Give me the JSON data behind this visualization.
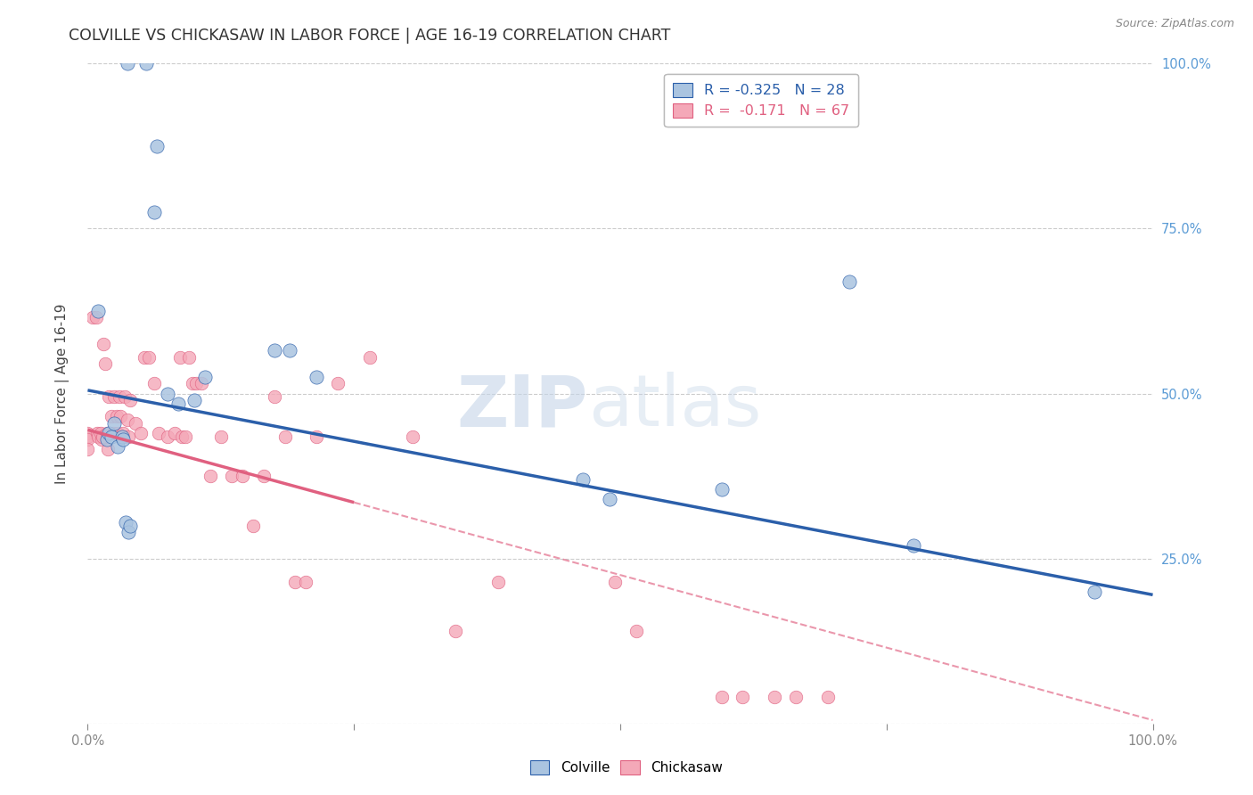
{
  "title": "COLVILLE VS CHICKASAW IN LABOR FORCE | AGE 16-19 CORRELATION CHART",
  "source": "Source: ZipAtlas.com",
  "ylabel": "In Labor Force | Age 16-19",
  "xlim": [
    0.0,
    1.0
  ],
  "ylim": [
    0.0,
    1.0
  ],
  "colville_color": "#aac4e0",
  "chickasaw_color": "#f4a8b8",
  "colville_line_color": "#2b5faa",
  "chickasaw_line_color": "#e06080",
  "colville_R": -0.325,
  "colville_N": 28,
  "chickasaw_R": -0.171,
  "chickasaw_N": 67,
  "watermark_zip": "ZIP",
  "watermark_atlas": "atlas",
  "colville_x": [
    0.037,
    0.055,
    0.065,
    0.01,
    0.018,
    0.02,
    0.022,
    0.025,
    0.028,
    0.032,
    0.033,
    0.036,
    0.038,
    0.04,
    0.062,
    0.075,
    0.085,
    0.1,
    0.11,
    0.175,
    0.19,
    0.215,
    0.465,
    0.49,
    0.595,
    0.715,
    0.775,
    0.945
  ],
  "colville_y": [
    1.0,
    1.0,
    0.875,
    0.625,
    0.43,
    0.44,
    0.435,
    0.455,
    0.42,
    0.435,
    0.43,
    0.305,
    0.29,
    0.3,
    0.775,
    0.5,
    0.485,
    0.49,
    0.525,
    0.565,
    0.565,
    0.525,
    0.37,
    0.34,
    0.355,
    0.67,
    0.27,
    0.2
  ],
  "chickasaw_x": [
    0.0,
    0.0,
    0.0,
    0.0,
    0.005,
    0.008,
    0.009,
    0.01,
    0.012,
    0.013,
    0.014,
    0.015,
    0.016,
    0.018,
    0.019,
    0.02,
    0.022,
    0.024,
    0.025,
    0.027,
    0.028,
    0.03,
    0.031,
    0.032,
    0.033,
    0.035,
    0.037,
    0.038,
    0.04,
    0.045,
    0.05,
    0.053,
    0.057,
    0.062,
    0.067,
    0.075,
    0.082,
    0.087,
    0.088,
    0.092,
    0.095,
    0.098,
    0.102,
    0.107,
    0.115,
    0.125,
    0.135,
    0.145,
    0.155,
    0.165,
    0.175,
    0.185,
    0.195,
    0.205,
    0.215,
    0.235,
    0.265,
    0.305,
    0.345,
    0.385,
    0.495,
    0.515,
    0.595,
    0.615,
    0.645,
    0.665,
    0.695
  ],
  "chickasaw_y": [
    0.44,
    0.435,
    0.43,
    0.415,
    0.615,
    0.615,
    0.44,
    0.435,
    0.44,
    0.43,
    0.435,
    0.575,
    0.545,
    0.44,
    0.415,
    0.495,
    0.465,
    0.44,
    0.495,
    0.465,
    0.44,
    0.495,
    0.465,
    0.435,
    0.44,
    0.495,
    0.46,
    0.435,
    0.49,
    0.455,
    0.44,
    0.555,
    0.555,
    0.515,
    0.44,
    0.435,
    0.44,
    0.555,
    0.435,
    0.435,
    0.555,
    0.515,
    0.515,
    0.515,
    0.375,
    0.435,
    0.375,
    0.375,
    0.3,
    0.375,
    0.495,
    0.435,
    0.215,
    0.215,
    0.435,
    0.515,
    0.555,
    0.435,
    0.14,
    0.215,
    0.215,
    0.14,
    0.04,
    0.04,
    0.04,
    0.04,
    0.04
  ],
  "background_color": "#ffffff",
  "grid_color": "#cccccc",
  "blue_color": "#5b9bd5",
  "title_fontsize": 12.5,
  "label_fontsize": 11,
  "tick_fontsize": 10.5,
  "source_fontsize": 9
}
